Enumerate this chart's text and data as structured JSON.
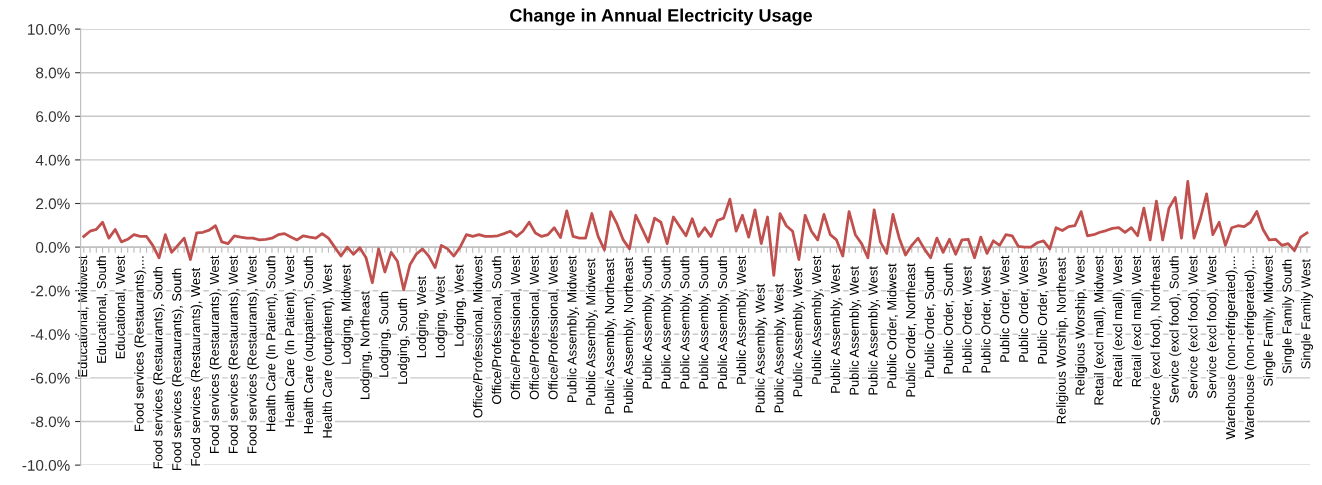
{
  "chart_data": {
    "type": "line",
    "title": "Change in Annual Electricity Usage",
    "categories": [
      "Educational, Midwest",
      null,
      null,
      "Educational, South",
      null,
      null,
      "Educational, West",
      null,
      null,
      "Food services (Restaurants),...",
      null,
      null,
      "Food services (Restaurants), South",
      null,
      null,
      "Food services (Restaurants), South",
      null,
      null,
      "Food services (Restaurants), West",
      null,
      null,
      "Food services (Restaurants), West",
      null,
      null,
      "Food services (Restaurants), West",
      null,
      null,
      "Food services (Restaurants), West",
      null,
      null,
      "Health Care (In Patient), South",
      null,
      null,
      "Health Care (In Patient), West",
      null,
      null,
      "Health Care (outpatient), South",
      null,
      null,
      "Health Care (outpatient), West",
      null,
      null,
      "Lodging, Midwest",
      null,
      null,
      "Lodging, Northeast",
      null,
      null,
      "Lodging, South",
      null,
      null,
      "Lodging, South",
      null,
      null,
      "Lodging, West",
      null,
      null,
      "Lodging, West",
      null,
      null,
      "Lodging, West",
      null,
      null,
      "Office/Professional, Midwest",
      null,
      null,
      "Office/Professional, South",
      null,
      null,
      "Office/Professional, West",
      null,
      null,
      "Office/Professional, West",
      null,
      null,
      "Office/Professional, West",
      null,
      null,
      "Public Assembly, Midwest",
      null,
      null,
      "Public Assembly, Midwest",
      null,
      null,
      "Public Assembly, Northeast",
      null,
      null,
      "Public Assembly, Northeast",
      null,
      null,
      "Public Assembly, South",
      null,
      null,
      "Public Assembly, South",
      null,
      null,
      "Public Assembly, South",
      null,
      null,
      "Public Assembly, South",
      null,
      null,
      "Public Assembly, South",
      null,
      null,
      "Public Assembly, West",
      null,
      null,
      "Public Assembly, West",
      null,
      null,
      "Public Assembly, West",
      null,
      null,
      "Public Assembly, West",
      null,
      null,
      "Public Assembly, West",
      null,
      null,
      "Public Assembly, West",
      null,
      null,
      "Public Assembly, West",
      null,
      null,
      "Public Assembly, West",
      null,
      null,
      "Public Order, Midwest",
      null,
      null,
      "Public Order, Northeast",
      null,
      null,
      "Public Order, South",
      null,
      null,
      "Public Order, South",
      null,
      null,
      "Public Order, West",
      null,
      null,
      "Public Order, West",
      null,
      null,
      "Public Order, West",
      null,
      null,
      "Public Order, West",
      null,
      null,
      "Public Order, West",
      null,
      null,
      "Religious Worship, Northeast",
      null,
      null,
      "Religious Worship, West",
      null,
      null,
      "Retail (excl mall), Midwest",
      null,
      null,
      "Retail (excl mall), West",
      null,
      null,
      "Retail (excl mall), West",
      null,
      null,
      "Service (excl food), Northeast",
      null,
      null,
      "Service (excl food), South",
      null,
      null,
      "Service (excl food), West",
      null,
      null,
      "Service (excl food), West",
      null,
      null,
      "Warehouse (non-refrigerated),...",
      null,
      null,
      "Warehouse (non-refrigerated),...",
      null,
      null,
      "Single Family, Midwest",
      null,
      null,
      "Single Family South",
      null,
      null,
      "Single Family West"
    ],
    "series": [
      {
        "color": "#c0504d",
        "values": [
          0.49,
          0.73,
          0.81,
          1.14,
          0.41,
          0.81,
          0.24,
          0.36,
          0.57,
          0.49,
          0.49,
          0.08,
          -0.49,
          0.57,
          -0.24,
          0.08,
          0.41,
          -0.57,
          0.65,
          0.68,
          0.78,
          0.98,
          0.24,
          0.16,
          0.52,
          0.46,
          0.41,
          0.41,
          0.33,
          0.36,
          0.41,
          0.57,
          0.62,
          0.46,
          0.33,
          0.52,
          0.46,
          0.41,
          0.62,
          0.41,
          0,
          -0.41,
          0,
          -0.33,
          -0.03,
          -0.49,
          -1.63,
          -0.08,
          -1.14,
          -0.24,
          -0.65,
          -1.95,
          -0.81,
          -0.33,
          -0.08,
          -0.41,
          -0.94,
          0.08,
          -0.08,
          -0.41,
          0,
          0.57,
          0.49,
          0.57,
          0.49,
          0.49,
          0.52,
          0.62,
          0.73,
          0.49,
          0.73,
          1.14,
          0.65,
          0.49,
          0.57,
          0.89,
          0.44,
          1.66,
          0.49,
          0.41,
          0.41,
          1.54,
          0.49,
          -0.13,
          1.63,
          1.06,
          0.33,
          -0.08,
          1.46,
          0.85,
          0.24,
          1.33,
          1.14,
          0.16,
          1.38,
          0.94,
          0.52,
          1.3,
          0.49,
          0.89,
          0.49,
          1.22,
          1.33,
          2.2,
          0.73,
          1.46,
          0.46,
          1.71,
          0.16,
          1.38,
          -1.3,
          1.54,
          0.98,
          0.73,
          -0.57,
          1.46,
          0.73,
          0.33,
          1.5,
          0.57,
          0.33,
          -0.41,
          1.63,
          0.57,
          0.16,
          -0.49,
          1.71,
          0.24,
          -0.29,
          1.5,
          0.41,
          -0.36,
          0.08,
          0.41,
          -0.08,
          -0.49,
          0.41,
          -0.24,
          0.36,
          -0.33,
          0.33,
          0.36,
          -0.49,
          0.46,
          -0.29,
          0.29,
          0.08,
          0.57,
          0.52,
          0.03,
          0,
          0,
          0.2,
          0.29,
          -0.08,
          0.89,
          0.76,
          0.94,
          0.98,
          1.63,
          0.52,
          0.57,
          0.68,
          0.76,
          0.86,
          0.89,
          0.68,
          0.89,
          0.52,
          1.79,
          0.33,
          2.11,
          0.33,
          1.79,
          2.28,
          0.41,
          3.01,
          0.41,
          1.3,
          2.44,
          0.57,
          1.14,
          0.08,
          0.89,
          0.98,
          0.94,
          1.14,
          1.63,
          0.81,
          0.33,
          0.36,
          0.08,
          0.16,
          -0.16,
          0.46,
          0.65
        ]
      }
    ],
    "ylim": [
      -10,
      10
    ],
    "yticks": [
      {
        "value": -10,
        "label": "-10.0%"
      },
      {
        "value": -8,
        "label": "-8.0%"
      },
      {
        "value": -6,
        "label": "-6.0%"
      },
      {
        "value": -4,
        "label": "-4.0%"
      },
      {
        "value": -2,
        "label": "-2.0%"
      },
      {
        "value": 0,
        "label": "0.0%"
      },
      {
        "value": 2,
        "label": "2.0%"
      },
      {
        "value": 4,
        "label": "4.0%"
      },
      {
        "value": 6,
        "label": "6.0%"
      },
      {
        "value": 8,
        "label": "8.0%"
      },
      {
        "value": 10,
        "label": "10.0%"
      }
    ],
    "grid": "y",
    "marker": "none",
    "line_style": "solid"
  }
}
